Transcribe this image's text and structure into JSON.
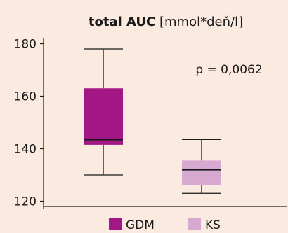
{
  "chart_data": {
    "type": "box",
    "title_bold": "total AUC",
    "title_rest": " [mmol*deň/l]",
    "ylim": [
      118,
      182
    ],
    "yticks": [
      120,
      140,
      160,
      180
    ],
    "grid": false,
    "legend_position": "bottom",
    "annotation": "p = 0,0062",
    "series": [
      {
        "name": "GDM",
        "color": "#a21785",
        "min": 130,
        "q1": 141.5,
        "median": 143.5,
        "q3": 163,
        "max": 178
      },
      {
        "name": "KS",
        "color": "#d7a9d0",
        "min": 123,
        "q1": 126,
        "median": 132,
        "q3": 135.5,
        "max": 143.5
      }
    ]
  }
}
